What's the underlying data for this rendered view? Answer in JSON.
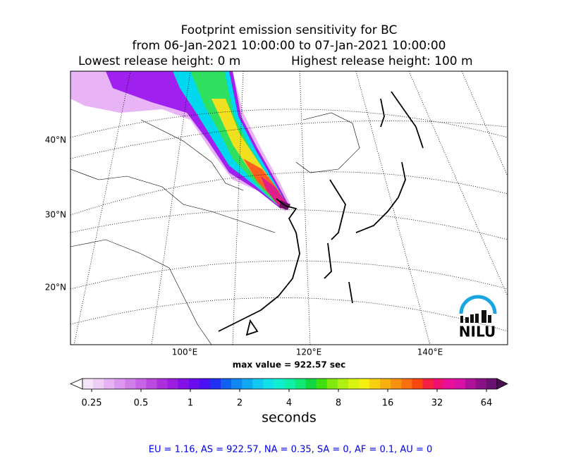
{
  "title": {
    "line1": "Footprint emission sensitivity for BC",
    "line2": "from 06-Jan-2021 10:00:00 to 07-Jan-2021 10:00:00",
    "lowest": "Lowest release height: 0 m",
    "highest": "Highest release height: 100 m"
  },
  "map": {
    "lat_labels": [
      "40°N",
      "30°N",
      "20°N"
    ],
    "lon_labels": [
      "100°E",
      "120°E",
      "140°E"
    ],
    "logo": "NILU",
    "max_value": "max value = 922.57 sec"
  },
  "colorbar": {
    "ticks": [
      "0.25",
      "0.5",
      "1",
      "2",
      "4",
      "8",
      "16",
      "32",
      "64"
    ],
    "label": "seconds"
  },
  "footer": "EU = 1.16,  AS = 922.57,  NA = 0.35,  SA = 0,  AF = 0.1,  AU = 0"
}
